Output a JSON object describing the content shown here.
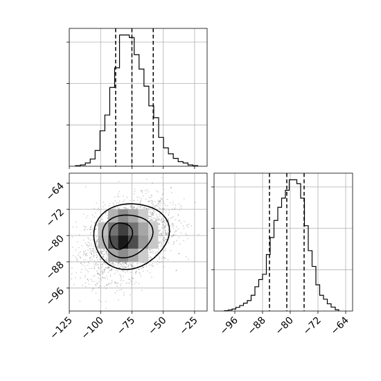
{
  "chart_data": [
    {
      "type": "histogram",
      "panel": "top-left",
      "param": "x",
      "xlim": [
        -125,
        -15
      ],
      "grid": true,
      "bins": [
        -120.0,
        -116.1,
        -112.2,
        -108.3,
        -104.4,
        -100.5,
        -96.6,
        -92.7,
        -88.8,
        -84.9,
        -81.0,
        -77.1,
        -73.2,
        -69.3,
        -65.4,
        -61.5,
        -57.6,
        -53.7,
        -49.8,
        -45.9,
        -42.0,
        -38.1,
        -34.2,
        -30.3,
        -26.4,
        -22.5
      ],
      "counts": [
        5,
        10,
        25,
        55,
        120,
        270,
        390,
        600,
        750,
        1000,
        1000,
        980,
        850,
        740,
        610,
        460,
        370,
        220,
        140,
        95,
        60,
        35,
        25,
        10,
        5
      ],
      "quantiles": [
        -88,
        -75,
        -58
      ],
      "ticks": [
        -125,
        -100,
        -75,
        -50,
        -25
      ],
      "tick_labels": [
        "−125",
        "−100",
        "−75",
        "−50",
        "−25"
      ]
    },
    {
      "type": "scatter",
      "panel": "bottom-left",
      "xlim": [
        -125,
        -15
      ],
      "ylim": [
        -103,
        -61
      ],
      "grid": true,
      "center": [
        -78,
        -81
      ],
      "spread": [
        17,
        6
      ],
      "contour_levels": 3,
      "xticks": [
        -125,
        -100,
        -75,
        -50,
        -25
      ],
      "xtick_labels": [
        "−125",
        "−100",
        "−75",
        "−50",
        "−25"
      ],
      "yticks": [
        -64,
        -72,
        -80,
        -88,
        -96
      ],
      "ytick_labels": [
        "−64",
        "−72",
        "−80",
        "−88",
        "−96"
      ]
    },
    {
      "type": "histogram",
      "panel": "bottom-right",
      "param": "y",
      "xlim": [
        -102,
        -62
      ],
      "grid": true,
      "bins": [
        -99.0,
        -97.9,
        -96.8,
        -95.7,
        -94.6,
        -93.5,
        -92.4,
        -91.3,
        -90.2,
        -89.1,
        -88.0,
        -86.9,
        -85.8,
        -84.7,
        -83.6,
        -82.5,
        -81.4,
        -80.3,
        -79.2,
        -78.1,
        -77.0,
        -75.9,
        -74.8,
        -73.7,
        -72.6,
        -71.5,
        -70.4,
        -69.3,
        -68.2,
        -67.0,
        -66.0
      ],
      "counts": [
        3,
        8,
        15,
        28,
        42,
        60,
        80,
        120,
        185,
        240,
        280,
        430,
        560,
        690,
        790,
        860,
        920,
        1000,
        1000,
        970,
        860,
        650,
        460,
        340,
        200,
        120,
        90,
        55,
        30,
        10
      ],
      "quantiles": [
        -86,
        -81,
        -76
      ],
      "ticks": [
        -96,
        -88,
        -80,
        -72,
        -64
      ],
      "tick_labels": [
        "−96",
        "−88",
        "−80",
        "−72",
        "−64"
      ]
    }
  ]
}
